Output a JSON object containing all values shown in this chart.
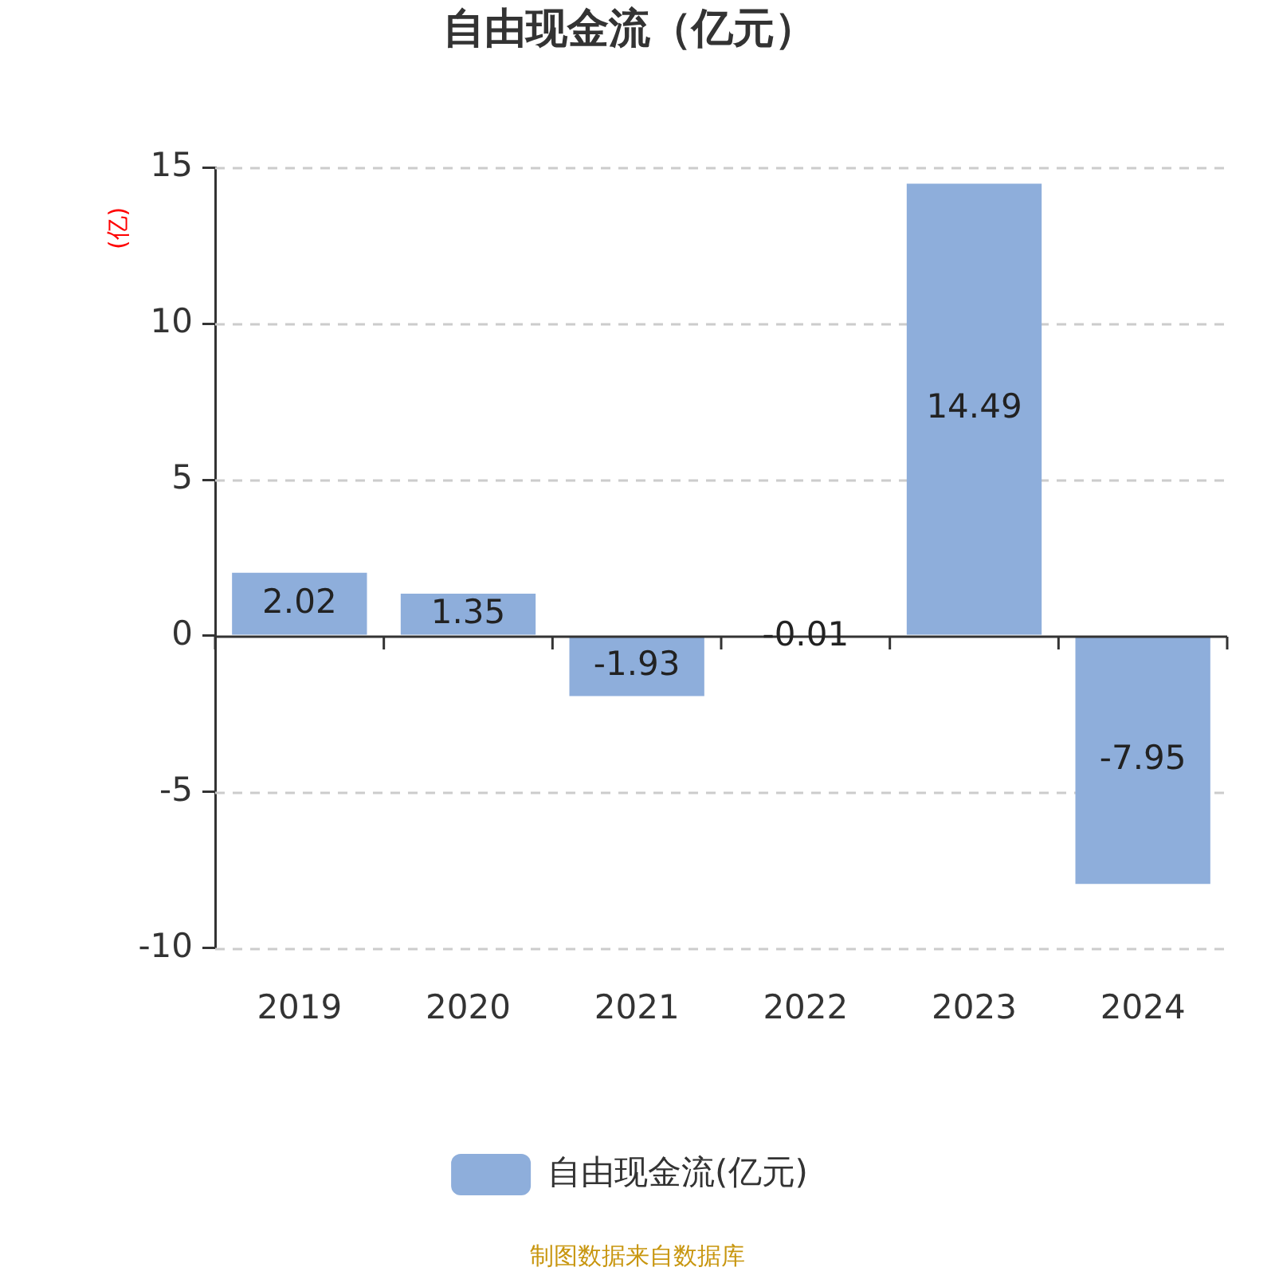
{
  "chart_data": {
    "type": "bar",
    "title": "自由现金流（亿元）",
    "ylabel": "(亿)",
    "categories": [
      "2019",
      "2020",
      "2021",
      "2022",
      "2023",
      "2024"
    ],
    "series": [
      {
        "name": "自由现金流(亿元)",
        "color": "#8eaedb",
        "values": [
          2.02,
          1.35,
          -1.93,
          -0.01,
          14.49,
          -7.95
        ]
      }
    ],
    "ylim": [
      -10,
      15
    ],
    "yticks": [
      -10,
      -5,
      0,
      5,
      10,
      15
    ],
    "grid": "y",
    "legend": "bottom",
    "data_labels": true,
    "annotations": [
      "制图数据来自数据库"
    ]
  }
}
